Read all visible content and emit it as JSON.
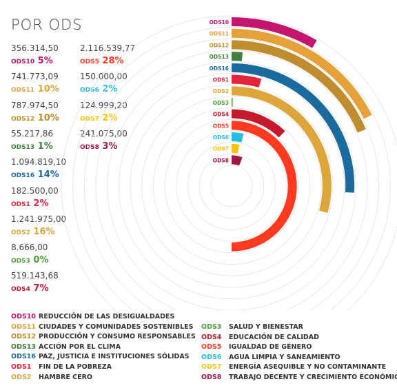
{
  "title": "POR ODS",
  "colors": {
    "ODS10": "#c4166e",
    "ODS11": "#e5a13a",
    "ODS12": "#bf8c2e",
    "ODS13": "#407f3d",
    "ODS16": "#1b6a9e",
    "ODS1": "#e5243b",
    "ODS2": "#dda63a",
    "ODS3": "#4c9f38",
    "ODS4": "#c5192d",
    "ODS5": "#ff3a21",
    "ODS6": "#26bde2",
    "ODS7": "#fcc30b",
    "ODS8": "#a21942"
  },
  "stats_left": [
    {
      "amount": "356.314,50",
      "code": "ODS10",
      "pct": "5%"
    },
    {
      "amount": "741.773,09",
      "code": "ODS11",
      "pct": "10%"
    },
    {
      "amount": "787.974,50",
      "code": "ODS12",
      "pct": "10%"
    },
    {
      "amount": "55.217,86",
      "code": "ODS13",
      "pct": "1%"
    },
    {
      "amount": "1.094.819,10",
      "code": "ODS16",
      "pct": "14%"
    },
    {
      "amount": "182.500,00",
      "code": "ODS1",
      "pct": "2%"
    },
    {
      "amount": "1.241.975,00",
      "code": "ODS2",
      "pct": "16%"
    },
    {
      "amount": "8.666,00",
      "code": "ODS3",
      "pct": "0%"
    },
    {
      "amount": "519.143,68",
      "code": "ODS4",
      "pct": "7%"
    }
  ],
  "stats_right": [
    {
      "amount": "2.116.539,77",
      "code": "ODS5",
      "pct": "28%"
    },
    {
      "amount": "150.000,00",
      "code": "ODS6",
      "pct": "2%"
    },
    {
      "amount": "124.999,20",
      "code": "ODS7",
      "pct": "2%"
    },
    {
      "amount": "241.075,00",
      "code": "ODS8",
      "pct": "3%"
    }
  ],
  "legend_left": [
    {
      "code": "ODS10",
      "name": "REDUCCIÓN DE LAS DESIGUALDADES"
    },
    {
      "code": "ODS11",
      "name": "CIUDADES Y COMUNIDADES SOSTENIBLES"
    },
    {
      "code": "ODS12",
      "name": "PRODUCCIÓN Y CONSUMO RESPONSABLES"
    },
    {
      "code": "ODS13",
      "name": "ACCIÓN POR EL CLIMA"
    },
    {
      "code": "ODS16",
      "name": "PAZ, JUSTICIA E INSTITUCIONES SÓLIDAS"
    },
    {
      "code": "ODS1",
      "name": "FIN DE LA POBREZA"
    },
    {
      "code": "ODS2",
      "name": "HAMBRE CERO"
    }
  ],
  "legend_right": [
    {
      "code": "ODS3",
      "name": "SALUD Y BIENESTAR"
    },
    {
      "code": "ODS4",
      "name": "EDUCACIÓN DE CALIDAD"
    },
    {
      "code": "ODS5",
      "name": "IGUALDAD DE GÉNERO"
    },
    {
      "code": "ODS6",
      "name": "AGUA LIMPIA Y SANEAMIENTO"
    },
    {
      "code": "ODS7",
      "name": "ENERGÍA ASEQUIBLE Y NO CONTAMINANTE"
    },
    {
      "code": "ODS8",
      "name": "TRABAJO DECENTE Y CRECIMIENTO ECONÓMICO"
    }
  ],
  "chart_data": {
    "type": "bar",
    "categories": [
      "ODS10",
      "ODS11",
      "ODS12",
      "ODS13",
      "ODS16",
      "ODS1",
      "ODS2",
      "ODS3",
      "ODS4",
      "ODS5",
      "ODS6",
      "ODS7",
      "ODS8"
    ],
    "values": [
      356314.5,
      741773.09,
      787974.5,
      55217.86,
      1094819.1,
      182500.0,
      1241975.0,
      8666.0,
      519143.68,
      2116539.77,
      150000.0,
      124999.2,
      241075.0
    ],
    "percent_labels": [
      "5%",
      "10%",
      "10%",
      "1%",
      "14%",
      "2%",
      "16%",
      "0%",
      "7%",
      "28%",
      "2%",
      "2%",
      "3%"
    ],
    "title": "POR ODS",
    "grid": true
  }
}
